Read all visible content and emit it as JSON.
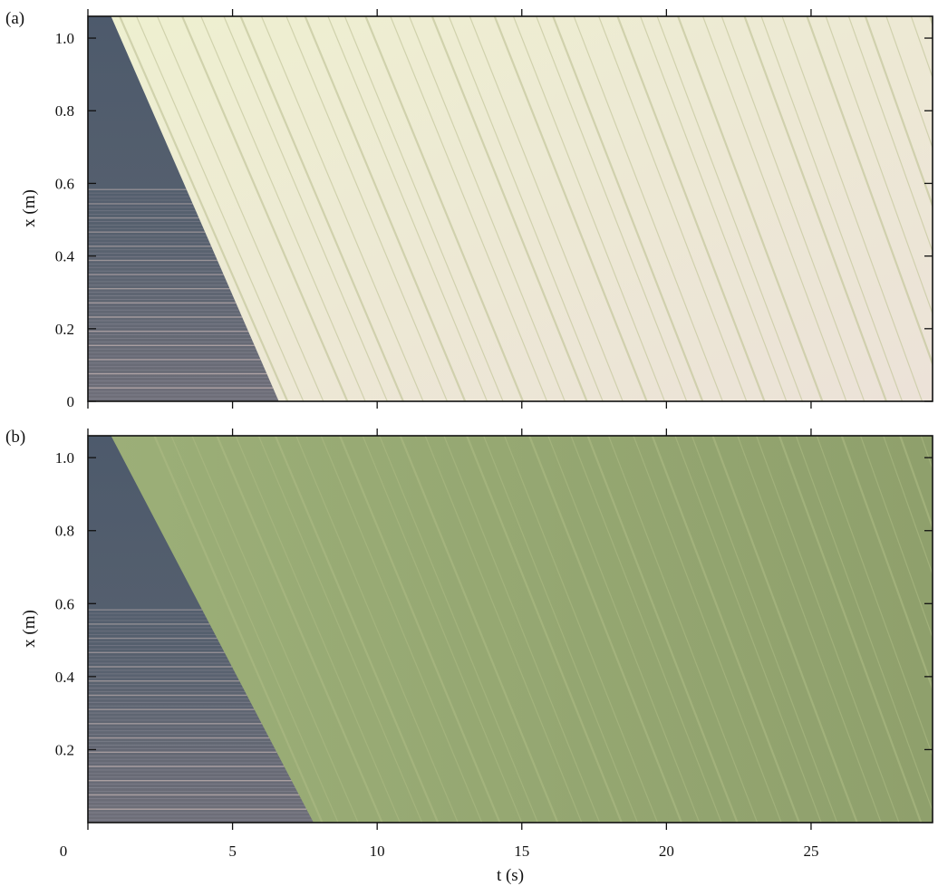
{
  "figure": {
    "panels": [
      {
        "label": "(a)",
        "yticks": [
          "1.0",
          "0.8",
          "0.6",
          "0.4",
          "0.2",
          "0"
        ],
        "ylabel": "x (m)"
      },
      {
        "label": "(b)",
        "yticks": [
          "1.0",
          "0.8",
          "0.6",
          "0.4",
          "0.2"
        ],
        "ylabel": "x (m)"
      }
    ],
    "xticks": [
      "0",
      "5",
      "10",
      "15",
      "20",
      "25"
    ],
    "xlabel": "t (s)"
  },
  "chart_data": [
    {
      "type": "heatmap",
      "title": "",
      "xlabel": "t (s)",
      "ylabel": "x (m)",
      "xlim": [
        0,
        29.2
      ],
      "ylim": [
        0,
        1.06
      ],
      "front": {
        "t_top": 0.8,
        "t_bottom": 6.6
      },
      "colors": {
        "dark": "#4b5568",
        "light": "#ebe9cd",
        "streak": "#c7c9a0"
      }
    },
    {
      "type": "heatmap",
      "title": "",
      "xlabel": "t (s)",
      "ylabel": "x (m)",
      "xlim": [
        0,
        29.2
      ],
      "ylim": [
        0,
        1.06
      ],
      "front": {
        "t_top": 0.8,
        "t_bottom": 7.8
      },
      "colors": {
        "dark": "#4b5568",
        "light": "#93a36e",
        "streak": "#adbb84"
      }
    }
  ]
}
